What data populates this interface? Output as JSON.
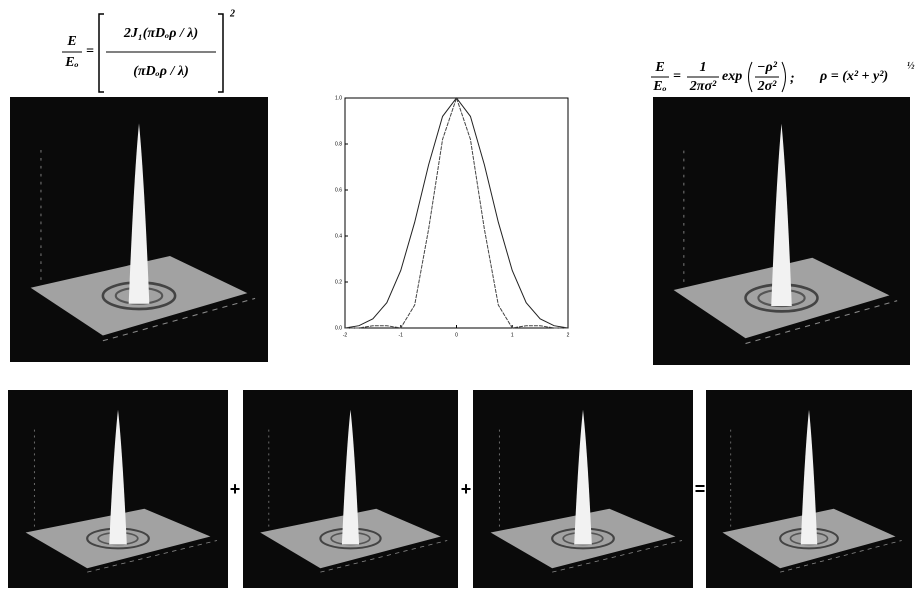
{
  "formula_left": {
    "lhs_numerator": "E",
    "lhs_denominator": "Eₒ",
    "equals": "=",
    "numerator": "2J₁(πDₒρ / λ)",
    "denominator": "(πDₒρ / λ)",
    "exponent": "2"
  },
  "formula_right": {
    "lhs_numerator": "E",
    "lhs_denominator": "Eₒ",
    "equals": "=",
    "coef_numerator": "1",
    "coef_denominator": "2πσ²",
    "function": "exp",
    "arg_numerator": "−ρ²",
    "arg_denominator": "2σ²",
    "separator": ";",
    "rho_definition": "ρ = (x² + y²)",
    "rho_exponent": "½"
  },
  "plot": {
    "x": [
      -2,
      -1.75,
      -1.5,
      -1.25,
      -1,
      -0.75,
      -0.5,
      -0.25,
      0,
      0.25,
      0.5,
      0.75,
      1,
      1.25,
      1.5,
      1.75,
      2
    ],
    "series": [
      {
        "color": "#222",
        "values": [
          0,
          0.01,
          0.04,
          0.11,
          0.25,
          0.46,
          0.71,
          0.92,
          1,
          0.92,
          0.71,
          0.46,
          0.25,
          0.11,
          0.04,
          0.01,
          0
        ]
      },
      {
        "color": "#444",
        "values": [
          0,
          0,
          0.01,
          0.01,
          0,
          0.1,
          0.43,
          0.82,
          1,
          0.82,
          0.43,
          0.1,
          0,
          0.01,
          0.01,
          0,
          0
        ]
      }
    ],
    "xlim": [
      -2,
      2
    ],
    "ylim": [
      0,
      1
    ],
    "xticks": [
      -2,
      -1,
      0,
      1,
      2
    ],
    "yticks": [
      {
        "value": 0,
        "label": "0.0"
      },
      0.2,
      0.4,
      0.6,
      0.8,
      {
        "value": 1,
        "label": "1.0"
      }
    ]
  },
  "operators": [
    "+",
    "+",
    "="
  ]
}
